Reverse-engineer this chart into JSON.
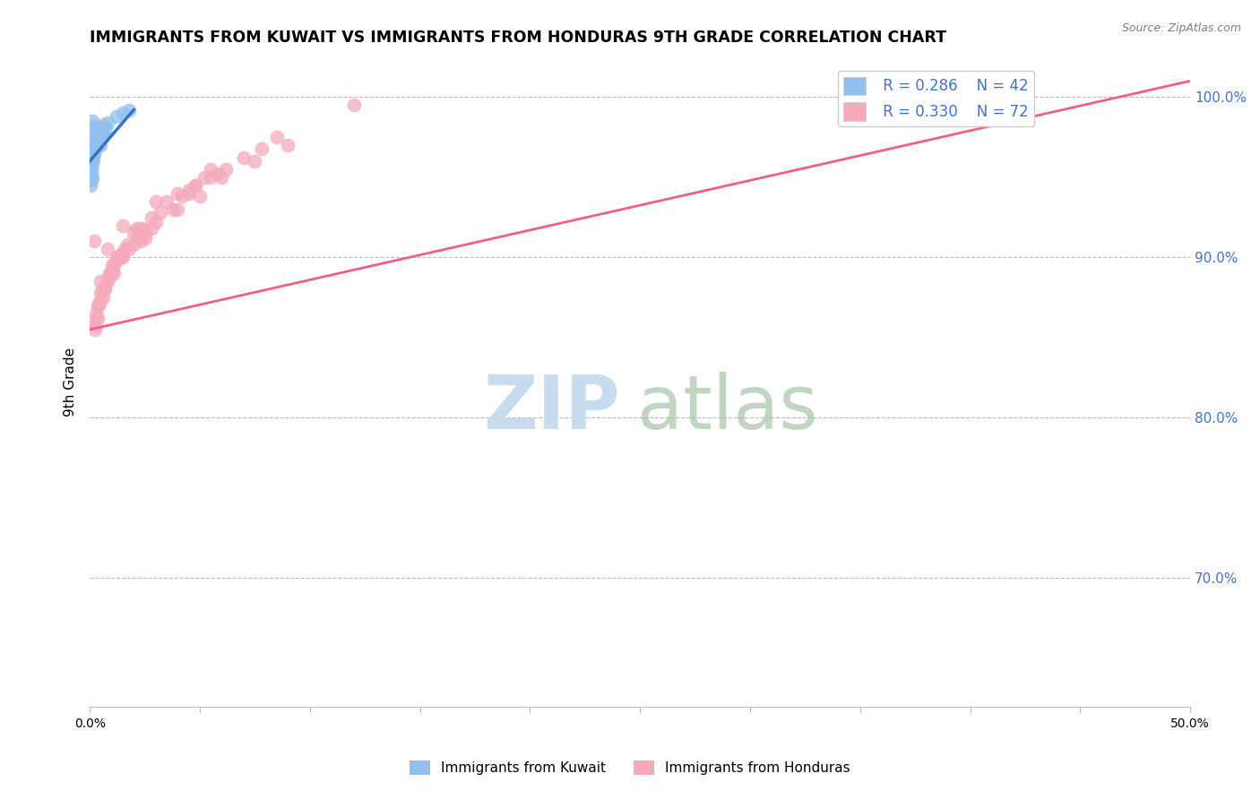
{
  "title": "IMMIGRANTS FROM KUWAIT VS IMMIGRANTS FROM HONDURAS 9TH GRADE CORRELATION CHART",
  "source": "Source: ZipAtlas.com",
  "ylabel": "9th Grade",
  "xmin": 0.0,
  "xmax": 50.0,
  "ymin": 62.0,
  "ymax": 102.5,
  "right_yticks": [
    70.0,
    80.0,
    90.0,
    100.0
  ],
  "kuwait_R": 0.286,
  "kuwait_N": 42,
  "honduras_R": 0.33,
  "honduras_N": 72,
  "kuwait_color": "#92BFED",
  "honduras_color": "#F4AABB",
  "kuwait_line_color": "#3572C6",
  "honduras_line_color": "#F06080",
  "kuwait_scatter_x": [
    0.1,
    0.2,
    0.3,
    0.15,
    0.25,
    0.4,
    0.5,
    0.08,
    0.18,
    0.35,
    0.12,
    0.22,
    0.45,
    0.06,
    0.28,
    0.55,
    0.65,
    0.1,
    0.32,
    0.48,
    1.2,
    0.05,
    0.38,
    0.72,
    0.14,
    0.16,
    0.42,
    0.6,
    0.07,
    0.26,
    0.36,
    0.09,
    0.8,
    0.2,
    1.5,
    0.13,
    0.3,
    0.58,
    0.11,
    0.44,
    1.8,
    0.17
  ],
  "kuwait_scatter_y": [
    98.5,
    98.2,
    98.0,
    97.8,
    97.5,
    97.2,
    97.0,
    96.8,
    96.5,
    97.3,
    96.2,
    96.8,
    97.9,
    95.5,
    97.1,
    98.1,
    98.3,
    95.0,
    97.0,
    97.8,
    98.8,
    94.5,
    97.4,
    98.0,
    96.1,
    96.5,
    97.2,
    97.7,
    94.8,
    96.9,
    97.0,
    95.3,
    98.4,
    96.6,
    99.0,
    96.3,
    97.2,
    97.5,
    95.8,
    97.6,
    99.2,
    96.4
  ],
  "honduras_scatter_x": [
    0.2,
    0.8,
    1.5,
    3.0,
    0.5,
    1.2,
    2.2,
    4.5,
    0.4,
    1.0,
    2.0,
    3.8,
    0.7,
    1.8,
    2.8,
    6.0,
    0.3,
    1.1,
    2.5,
    5.0,
    0.6,
    1.4,
    2.3,
    4.8,
    0.9,
    2.1,
    3.5,
    0.15,
    4.0,
    5.5,
    0.5,
    1.3,
    2.4,
    7.5,
    0.25,
    1.0,
    2.2,
    5.8,
    0.35,
    1.6,
    3.2,
    0.8,
    4.2,
    9.0,
    0.28,
    1.2,
    2.8,
    7.0,
    0.55,
    1.7,
    3.0,
    1.5,
    6.2,
    0.9,
    4.5,
    7.8,
    0.45,
    2.0,
    5.2,
    1.1,
    2.5,
    4.8,
    12.0,
    0.38,
    1.4,
    2.2,
    5.5,
    0.7,
    2.3,
    4.0,
    8.5,
    1.0
  ],
  "honduras_scatter_y": [
    91.0,
    90.5,
    92.0,
    93.5,
    88.5,
    90.0,
    91.5,
    94.0,
    87.0,
    89.5,
    90.8,
    93.0,
    88.0,
    90.5,
    91.8,
    95.0,
    86.5,
    89.0,
    91.5,
    93.8,
    87.5,
    90.2,
    91.0,
    94.5,
    89.0,
    91.8,
    93.5,
    86.0,
    93.0,
    95.5,
    87.8,
    90.0,
    91.8,
    96.0,
    85.5,
    89.2,
    91.2,
    95.2,
    86.2,
    90.5,
    92.8,
    88.5,
    93.8,
    97.0,
    85.8,
    89.8,
    92.5,
    96.2,
    88.0,
    90.8,
    92.2,
    90.0,
    95.5,
    88.8,
    94.2,
    96.8,
    87.2,
    91.5,
    95.0,
    89.5,
    91.2,
    94.5,
    99.5,
    87.0,
    90.0,
    91.2,
    95.0,
    88.2,
    91.8,
    94.0,
    97.5,
    89.2
  ],
  "kuwait_trend": [
    0.0,
    2.0,
    96.0,
    99.2
  ],
  "honduras_trend": [
    0.0,
    50.0,
    85.5,
    101.0
  ]
}
